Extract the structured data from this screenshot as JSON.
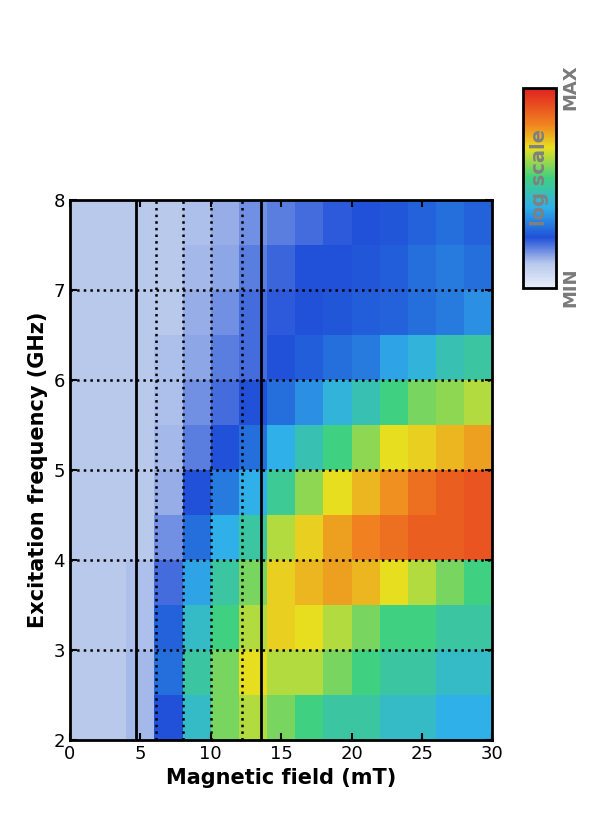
{
  "chart_data": {
    "type": "heatmap",
    "xlabel": "Magnetic field (mT)",
    "ylabel": "Excitation frequency (GHz)",
    "xlim": [
      0,
      30
    ],
    "ylim": [
      2,
      8
    ],
    "xticks": [
      0,
      5,
      10,
      15,
      20,
      25,
      30
    ],
    "yticks": [
      2,
      3,
      4,
      5,
      6,
      7,
      8
    ],
    "x_edges": [
      0,
      2,
      4,
      6,
      8,
      10,
      12,
      14,
      16,
      18,
      20,
      22,
      24,
      26,
      28,
      30
    ],
    "y_edges": [
      2,
      2.5,
      3,
      3.5,
      4,
      4.5,
      5,
      5.5,
      6,
      6.5,
      7,
      7.5,
      8
    ],
    "cells": [
      [
        0.12,
        0.12,
        0.14,
        0.25,
        0.45,
        0.6,
        0.65,
        0.6,
        0.55,
        0.5,
        0.5,
        0.45,
        0.45,
        0.4,
        0.4
      ],
      [
        0.12,
        0.12,
        0.14,
        0.3,
        0.5,
        0.6,
        0.7,
        0.65,
        0.65,
        0.6,
        0.55,
        0.5,
        0.5,
        0.45,
        0.45
      ],
      [
        0.12,
        0.12,
        0.13,
        0.28,
        0.45,
        0.55,
        0.65,
        0.72,
        0.7,
        0.65,
        0.6,
        0.55,
        0.55,
        0.5,
        0.5
      ],
      [
        0.12,
        0.12,
        0.13,
        0.22,
        0.38,
        0.5,
        0.6,
        0.72,
        0.75,
        0.78,
        0.75,
        0.7,
        0.65,
        0.6,
        0.55
      ],
      [
        0.12,
        0.12,
        0.12,
        0.18,
        0.3,
        0.4,
        0.5,
        0.65,
        0.72,
        0.78,
        0.82,
        0.85,
        0.88,
        0.88,
        0.9
      ],
      [
        0.12,
        0.12,
        0.12,
        0.15,
        0.25,
        0.32,
        0.4,
        0.52,
        0.62,
        0.7,
        0.75,
        0.8,
        0.85,
        0.88,
        0.9
      ],
      [
        0.12,
        0.12,
        0.12,
        0.14,
        0.2,
        0.25,
        0.3,
        0.4,
        0.48,
        0.55,
        0.62,
        0.7,
        0.72,
        0.75,
        0.78
      ],
      [
        0.12,
        0.12,
        0.12,
        0.13,
        0.18,
        0.22,
        0.25,
        0.3,
        0.35,
        0.42,
        0.48,
        0.55,
        0.6,
        0.62,
        0.65
      ],
      [
        0.12,
        0.12,
        0.12,
        0.13,
        0.16,
        0.2,
        0.22,
        0.25,
        0.27,
        0.3,
        0.32,
        0.38,
        0.42,
        0.48,
        0.5
      ],
      [
        0.12,
        0.12,
        0.12,
        0.12,
        0.15,
        0.18,
        0.22,
        0.24,
        0.25,
        0.26,
        0.27,
        0.28,
        0.3,
        0.32,
        0.35
      ],
      [
        0.12,
        0.12,
        0.12,
        0.12,
        0.14,
        0.16,
        0.2,
        0.23,
        0.25,
        0.25,
        0.26,
        0.27,
        0.3,
        0.32,
        0.3
      ],
      [
        0.12,
        0.12,
        0.12,
        0.12,
        0.13,
        0.15,
        0.18,
        0.2,
        0.22,
        0.24,
        0.25,
        0.26,
        0.28,
        0.3,
        0.28
      ]
    ],
    "vlines_solid": [
      4.7,
      13.6
    ],
    "vlines_dotted": [
      6.1,
      8,
      10,
      12.2
    ],
    "hlines_dotted": [
      3,
      4,
      5,
      6,
      7
    ],
    "colorbar": {
      "label": "log scale",
      "range": [
        0,
        1
      ],
      "ticks": [
        {
          "value": 0,
          "label": "MIN"
        },
        {
          "value": 1,
          "label": "MAX"
        }
      ]
    }
  }
}
